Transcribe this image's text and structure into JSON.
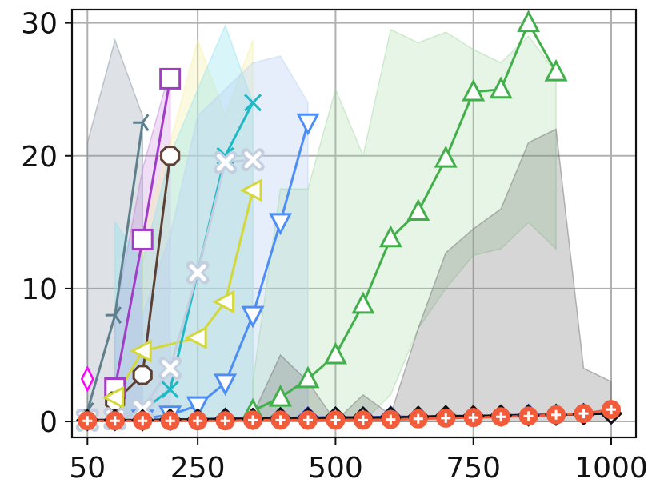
{
  "chart_data": {
    "type": "line",
    "title": "",
    "xlabel": "",
    "ylabel": "",
    "xlim": [
      22,
      1045
    ],
    "ylim": [
      -1.2,
      31
    ],
    "x_ticks": [
      50,
      250,
      500,
      750,
      1000
    ],
    "x_tick_labels": [
      "50",
      "250",
      "500",
      "750",
      "1000"
    ],
    "y_ticks": [
      0,
      10,
      20,
      30
    ],
    "y_tick_labels": [
      "0",
      "10",
      "20",
      "30"
    ],
    "grid": true,
    "bands": [
      {
        "color": "#7a8c9a",
        "opacity": 0.25,
        "x": [
          50,
          100,
          150
        ],
        "lower": [
          0,
          0,
          0
        ],
        "upper": [
          21,
          28.7,
          23
        ]
      },
      {
        "color": "#c07ad8",
        "opacity": 0.25,
        "x": [
          100,
          150,
          200
        ],
        "lower": [
          0,
          0,
          0
        ],
        "upper": [
          8,
          19,
          26.5
        ]
      },
      {
        "color": "#f2f09a",
        "opacity": 0.3,
        "x": [
          150,
          200,
          250,
          300,
          350
        ],
        "lower": [
          0,
          0,
          0,
          0,
          0
        ],
        "upper": [
          14,
          21,
          28.7,
          23,
          28.7
        ]
      },
      {
        "color": "#8fe3ef",
        "opacity": 0.35,
        "x": [
          100,
          150,
          200,
          250,
          300,
          350
        ],
        "lower": [
          0,
          0,
          0,
          0,
          0,
          0
        ],
        "upper": [
          15,
          12,
          20,
          25,
          29.8,
          24
        ]
      },
      {
        "color": "#b7cff5",
        "opacity": 0.35,
        "x": [
          150,
          200,
          250,
          300,
          350,
          400,
          450
        ],
        "lower": [
          0,
          0,
          0,
          0,
          0,
          0,
          0
        ],
        "upper": [
          8,
          14,
          23,
          25,
          27,
          27.5,
          24
        ]
      },
      {
        "color": "#9fd6a0",
        "opacity": 0.25,
        "x": [
          350,
          400,
          450,
          500,
          550,
          600,
          650,
          700,
          750,
          800,
          850,
          900
        ],
        "lower": [
          0,
          0,
          0,
          0,
          0,
          2,
          7,
          10,
          12.5,
          13,
          15,
          13
        ],
        "upper": [
          3,
          17.5,
          17.5,
          25,
          20,
          29.5,
          28.5,
          29.3,
          28,
          27,
          29,
          26.3
        ]
      },
      {
        "color": "#6b6b6b",
        "opacity": 0.28,
        "x": [
          350,
          400,
          450,
          500,
          550,
          600,
          650,
          700,
          750,
          800,
          850,
          900,
          950,
          1000
        ],
        "lower": [
          0,
          0,
          0,
          0,
          0,
          0,
          0,
          0,
          0,
          0,
          0,
          0,
          0,
          0
        ],
        "upper": [
          0.5,
          5,
          3,
          0,
          2,
          0.5,
          7,
          12.7,
          14.5,
          16,
          21,
          22,
          4,
          3
        ]
      }
    ],
    "series": [
      {
        "color": "#5e7f8c",
        "marker": "tri_left",
        "x": [
          50,
          100,
          150
        ],
        "y": [
          0.8,
          8,
          22.5
        ]
      },
      {
        "color": "#a23bc6",
        "marker": "square",
        "x": [
          100,
          150,
          200
        ],
        "y": [
          2.5,
          13.7,
          25.8
        ]
      },
      {
        "color": "#5c4033",
        "marker": "octagon",
        "x": [
          100,
          150,
          200
        ],
        "y": [
          1.5,
          3.5,
          20
        ]
      },
      {
        "color": "#d4d73a",
        "marker": "triangle_left",
        "x": [
          100,
          150,
          250,
          300,
          350
        ],
        "y": [
          1.8,
          5.3,
          6.3,
          9,
          17.4
        ]
      },
      {
        "color": "#1fb9c6",
        "marker": "x_thin",
        "x": [
          100,
          150,
          200,
          250,
          300,
          350
        ],
        "y": [
          0.3,
          0.8,
          2.4,
          11.2,
          20,
          24
        ]
      },
      {
        "color": "#4c8ef5",
        "marker": "triangle_down",
        "x": [
          150,
          200,
          250,
          300,
          350,
          400,
          450
        ],
        "y": [
          0.2,
          0.5,
          1.2,
          2.9,
          8,
          15,
          22.5
        ]
      },
      {
        "color": "#42b04a",
        "marker": "triangle_up",
        "x": [
          350,
          400,
          450,
          500,
          550,
          600,
          650,
          700,
          750,
          800,
          850,
          900
        ],
        "y": [
          0.8,
          1.8,
          3.2,
          5,
          8.8,
          13.8,
          15.8,
          19.8,
          24.8,
          25,
          30,
          26.3
        ]
      },
      {
        "color": "#c3cfe0",
        "marker": "x_thick",
        "x": [
          50,
          100,
          150,
          200,
          250,
          300,
          350
        ],
        "y": [
          0.1,
          0.2,
          0.9,
          4,
          11.2,
          19.5,
          19.7
        ]
      },
      {
        "color": "#ff00ff",
        "marker": "diamond_thin",
        "x": [
          50
        ],
        "y": [
          3.2
        ]
      },
      {
        "color": "#2040ff",
        "marker": "diamond",
        "x": [
          50,
          100,
          150,
          200,
          250,
          300,
          350,
          400,
          450,
          500,
          550,
          600,
          650,
          700,
          750,
          800,
          850,
          900,
          950,
          1000
        ],
        "y": [
          0.1,
          0.1,
          0.1,
          0.1,
          0.15,
          0.2,
          0.2,
          0.25,
          0.3,
          0.3,
          0.3,
          0.35,
          0.35,
          0.4,
          0.4,
          0.45,
          0.5,
          0.5,
          0.55,
          0.6
        ]
      },
      {
        "color": "#111111",
        "marker": "diamond",
        "x": [
          50,
          100,
          150,
          200,
          250,
          300,
          350,
          400,
          450,
          500,
          550,
          600,
          650,
          700,
          750,
          800,
          850,
          900,
          950,
          1000
        ],
        "y": [
          0.1,
          0.1,
          0.1,
          0.15,
          0.15,
          0.2,
          0.2,
          0.25,
          0.25,
          0.3,
          0.3,
          0.3,
          0.35,
          0.4,
          0.4,
          0.45,
          0.45,
          0.5,
          0.55,
          0.6
        ]
      },
      {
        "color": "#f25c3b",
        "marker": "circle_plus",
        "x": [
          50,
          100,
          150,
          200,
          250,
          300,
          350,
          400,
          450,
          500,
          550,
          600,
          650,
          700,
          750,
          800,
          850,
          900,
          950,
          1000
        ],
        "y": [
          0.05,
          0.05,
          0.05,
          0.05,
          0.05,
          0.05,
          0.1,
          0.1,
          0.1,
          0.1,
          0.1,
          0.15,
          0.2,
          0.25,
          0.3,
          0.35,
          0.4,
          0.5,
          0.6,
          0.9
        ]
      }
    ]
  }
}
